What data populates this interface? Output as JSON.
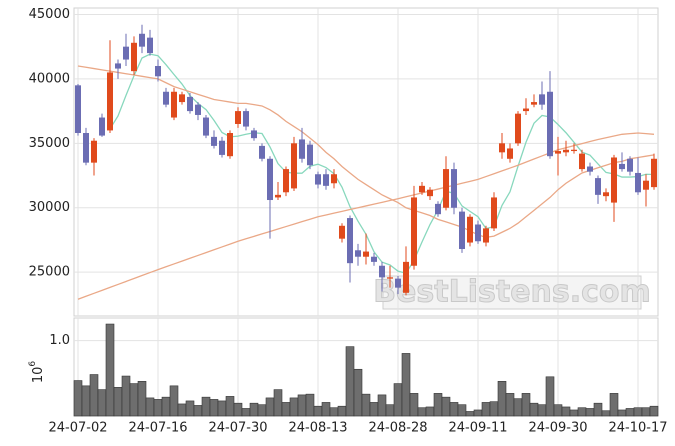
{
  "chart_data": {
    "type": "candlestick",
    "categories": [
      "24-07-02",
      null,
      null,
      null,
      null,
      null,
      null,
      null,
      null,
      null,
      "24-07-16",
      null,
      null,
      null,
      null,
      null,
      null,
      null,
      null,
      null,
      "24-07-30",
      null,
      null,
      null,
      null,
      null,
      null,
      null,
      null,
      null,
      "24-08-13",
      null,
      null,
      null,
      null,
      null,
      null,
      null,
      null,
      null,
      "24-08-28",
      null,
      null,
      null,
      null,
      null,
      null,
      null,
      null,
      null,
      "24-09-11",
      null,
      null,
      null,
      null,
      null,
      null,
      null,
      null,
      null,
      "24-09-30",
      null,
      null,
      null,
      null,
      null,
      null,
      null,
      null,
      null,
      "24-10-17",
      null,
      null
    ],
    "open": [
      39500,
      35800,
      33500,
      37000,
      36000,
      41200,
      42500,
      40600,
      43500,
      43200,
      41000,
      39000,
      37000,
      38200,
      38600,
      38000,
      37000,
      35500,
      35200,
      34000,
      36500,
      37500,
      36000,
      34800,
      33800,
      30800,
      31200,
      31500,
      35300,
      34900,
      32600,
      32600,
      31900,
      27600,
      29200,
      26700,
      26200,
      26200,
      25500,
      24500,
      24500,
      23400,
      25500,
      31200,
      30900,
      30300,
      30000,
      33000,
      29700,
      27300,
      28700,
      27300,
      28400,
      34300,
      33800,
      35000,
      37500,
      38000,
      38800,
      39000,
      34200,
      34300,
      34400,
      33000,
      33200,
      32300,
      30900,
      30400,
      33400,
      33800,
      32700,
      31400,
      31600
    ],
    "high": [
      39600,
      36200,
      35400,
      37300,
      43000,
      41500,
      43500,
      43300,
      44200,
      43800,
      41500,
      39300,
      39300,
      39000,
      38900,
      38200,
      37200,
      36000,
      35500,
      36000,
      37800,
      37700,
      36200,
      35000,
      34000,
      32000,
      33200,
      35500,
      36200,
      35200,
      32800,
      33000,
      33000,
      28800,
      29400,
      27200,
      28000,
      26500,
      25800,
      25500,
      24700,
      27000,
      31700,
      32000,
      31600,
      30500,
      34000,
      33500,
      30000,
      29500,
      29000,
      28600,
      31200,
      35800,
      35000,
      37500,
      38500,
      38800,
      39800,
      40600,
      35500,
      35200,
      35000,
      34500,
      33500,
      32500,
      31500,
      34100,
      34300,
      34000,
      33900,
      32600,
      34200
    ],
    "low": [
      35600,
      33300,
      32500,
      35500,
      35800,
      40000,
      41000,
      40300,
      42000,
      41800,
      39800,
      37800,
      36800,
      38000,
      37300,
      36800,
      35400,
      34600,
      33900,
      33800,
      36200,
      36000,
      35200,
      33600,
      27600,
      30600,
      30900,
      31300,
      33500,
      33000,
      31500,
      31400,
      31500,
      27300,
      24200,
      25500,
      25600,
      25500,
      23500,
      23800,
      23300,
      23200,
      25200,
      31000,
      30600,
      29300,
      29800,
      29500,
      26500,
      27000,
      27200,
      27000,
      28200,
      33800,
      33500,
      34800,
      37200,
      37800,
      37600,
      33800,
      32500,
      34000,
      34200,
      32800,
      32500,
      30300,
      30500,
      28900,
      32800,
      32500,
      31000,
      30100,
      31400
    ],
    "close": [
      35800,
      33500,
      35200,
      35600,
      40500,
      40800,
      41500,
      42800,
      42500,
      42000,
      40200,
      38000,
      39000,
      38800,
      37500,
      37200,
      35600,
      34800,
      34100,
      35800,
      37500,
      36300,
      35400,
      33800,
      30600,
      31000,
      33000,
      35000,
      33800,
      33300,
      31800,
      31700,
      32600,
      28600,
      25700,
      26200,
      26600,
      25800,
      24600,
      24600,
      23800,
      25800,
      30800,
      31700,
      31400,
      29500,
      33000,
      30000,
      26800,
      29300,
      27400,
      28400,
      30800,
      35000,
      34600,
      37300,
      37700,
      38200,
      38000,
      34000,
      34400,
      34500,
      34500,
      34200,
      32800,
      31000,
      31200,
      33900,
      33000,
      32800,
      31200,
      32100,
      33800
    ],
    "volume": [
      0.47,
      0.4,
      0.55,
      0.35,
      1.22,
      0.38,
      0.53,
      0.43,
      0.46,
      0.24,
      0.22,
      0.25,
      0.4,
      0.16,
      0.2,
      0.14,
      0.25,
      0.22,
      0.2,
      0.26,
      0.17,
      0.1,
      0.17,
      0.15,
      0.24,
      0.35,
      0.18,
      0.24,
      0.28,
      0.29,
      0.13,
      0.18,
      0.11,
      0.13,
      0.92,
      0.62,
      0.29,
      0.18,
      0.28,
      0.15,
      0.43,
      0.83,
      0.3,
      0.11,
      0.12,
      0.3,
      0.25,
      0.18,
      0.15,
      0.06,
      0.08,
      0.18,
      0.19,
      0.46,
      0.3,
      0.23,
      0.3,
      0.17,
      0.15,
      0.52,
      0.15,
      0.12,
      0.08,
      0.11,
      0.1,
      0.17,
      0.07,
      0.3,
      0.08,
      0.1,
      0.11,
      0.11,
      0.13
    ],
    "up_color": "#e04a1c",
    "down_color": "#6b6db3",
    "volume_color": "#6e6e6e",
    "moving_averages": [
      {
        "color": "#88d8bd",
        "values": [
          null,
          null,
          null,
          null,
          36120,
          37120,
          38720,
          40240,
          41620,
          41920,
          41800,
          41100,
          40340,
          39600,
          38700,
          38100,
          37620,
          36780,
          35840,
          35500,
          35560,
          35700,
          35820,
          35760,
          34720,
          33420,
          32760,
          32680,
          32680,
          33220,
          33380,
          33120,
          32640,
          31600,
          30080,
          28960,
          27940,
          26580,
          25780,
          25560,
          25080,
          24920,
          25920,
          27340,
          28700,
          29840,
          31280,
          31120,
          30140,
          29720,
          29300,
          28380,
          28540,
          30180,
          31240,
          33220,
          35080,
          36560,
          37160,
          37040,
          36460,
          35820,
          35080,
          34320,
          34080,
          33400,
          32740,
          32620,
          32380,
          32380,
          32420,
          32600,
          32580
        ]
      },
      {
        "color": "#eaa887",
        "values": [
          41000,
          40900,
          40800,
          40700,
          40600,
          40500,
          40400,
          40300,
          40200,
          40100,
          40000,
          39700,
          39400,
          39200,
          39000,
          38800,
          38600,
          38400,
          38300,
          38200,
          38100,
          38100,
          38000,
          37900,
          37600,
          37200,
          36700,
          36300,
          35900,
          35400,
          34900,
          34300,
          33800,
          33200,
          32700,
          32200,
          31800,
          31400,
          31000,
          30700,
          30400,
          30000,
          29800,
          29600,
          29400,
          29100,
          28900,
          28700,
          28500,
          28200,
          27900,
          27700,
          27800,
          28100,
          28400,
          28800,
          29300,
          29800,
          30300,
          30800,
          31400,
          31900,
          32300,
          32700,
          32900,
          33100,
          33300,
          33500,
          33600,
          33800,
          33900,
          34000,
          34100
        ]
      },
      {
        "color": "#eaa887",
        "values": [
          22900,
          23130,
          23360,
          23590,
          23820,
          24050,
          24280,
          24510,
          24740,
          24970,
          25200,
          25420,
          25640,
          25860,
          26080,
          26300,
          26520,
          26740,
          26960,
          27180,
          27400,
          27590,
          27780,
          27970,
          28160,
          28350,
          28540,
          28730,
          28920,
          29110,
          29300,
          29440,
          29580,
          29720,
          29860,
          30000,
          30140,
          30280,
          30420,
          30560,
          30700,
          30850,
          31000,
          31150,
          31300,
          31450,
          31600,
          31750,
          31900,
          32050,
          32200,
          32420,
          32640,
          32860,
          33080,
          33300,
          33540,
          33780,
          34020,
          34260,
          34500,
          34660,
          34820,
          34980,
          35140,
          35300,
          35430,
          35570,
          35700,
          35750,
          35800,
          35750,
          35700
        ]
      }
    ],
    "ylim": [
      21600,
      45500
    ],
    "yticks": [
      25000,
      30000,
      35000,
      40000,
      45000
    ],
    "volume_ylim": [
      0,
      1.3
    ],
    "volume_yticks": [
      {
        "value": 1,
        "label": "1.0"
      }
    ],
    "volume_scale_base": "10",
    "volume_scale_exponent": "6",
    "grid": true,
    "watermark": "BestListens.com"
  }
}
